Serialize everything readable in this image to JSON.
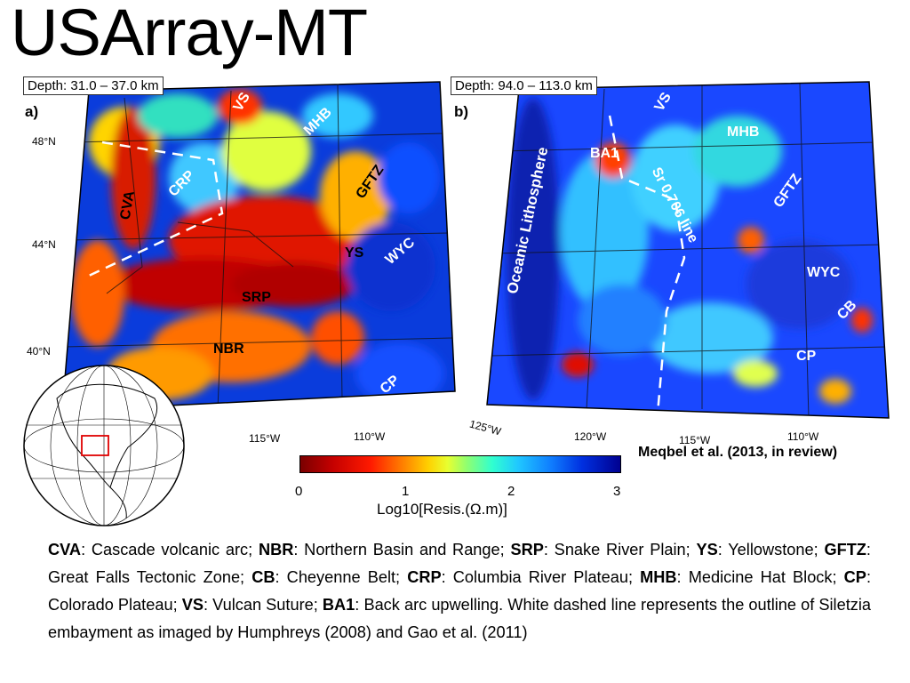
{
  "title": "USArray-MT",
  "panel_a": {
    "depth": "Depth: 31.0 – 37.0 km",
    "letter": "a)",
    "lat_labels": [
      "48°N",
      "44°N",
      "40°N"
    ],
    "lon_labels": [
      "115°W",
      "110°W"
    ],
    "regions": [
      "VS",
      "MHB",
      "CRP",
      "CVA",
      "GFTZ",
      "YS",
      "WYC",
      "SRP",
      "NBR",
      "CP"
    ]
  },
  "panel_b": {
    "depth": "Depth: 94.0 – 113.0 km",
    "letter": "b)",
    "lon_labels": [
      "125°W",
      "120°W",
      "115°W",
      "110°W"
    ],
    "regions": [
      "VS",
      "MHB",
      "BA1",
      "Sr 0.706 line",
      "GFTZ",
      "Oceanic Lithosphere",
      "WYC",
      "CB",
      "CP"
    ]
  },
  "colorbar": {
    "ticks": [
      "0",
      "1",
      "2",
      "3"
    ],
    "label": "Log10[Resis.(Ω.m)]"
  },
  "citation": "Meqbel et al. (2013, in review)",
  "caption": {
    "items": [
      {
        "abbr": "CVA",
        "text": ": Cascade volcanic arc; "
      },
      {
        "abbr": "NBR",
        "text": ": Northern Basin and Range; "
      },
      {
        "abbr": "SRP",
        "text": ": Snake River Plain; "
      },
      {
        "abbr": "YS",
        "text": ": Yellowstone; "
      },
      {
        "abbr": "GFTZ",
        "text": ": Great Falls Tectonic Zone; "
      },
      {
        "abbr": "CB",
        "text": ": Cheyenne Belt; "
      },
      {
        "abbr": "CRP",
        "text": ": Columbia River Plateau; "
      },
      {
        "abbr": "MHB",
        "text": ": Medicine Hat Block; "
      },
      {
        "abbr": "CP",
        "text": ": Colorado Plateau; "
      },
      {
        "abbr": "VS",
        "text": ": Vulcan Suture; "
      },
      {
        "abbr": "BA1",
        "text": ": Back arc upwelling. "
      }
    ],
    "tail": "White dashed line represents the outline of Siletzia embayment as imaged by Humphreys (2008) and Gao et al. (2011)"
  },
  "colors": {
    "red": "#d00000",
    "blue": "#0018d8",
    "cyan": "#30c8ff"
  }
}
